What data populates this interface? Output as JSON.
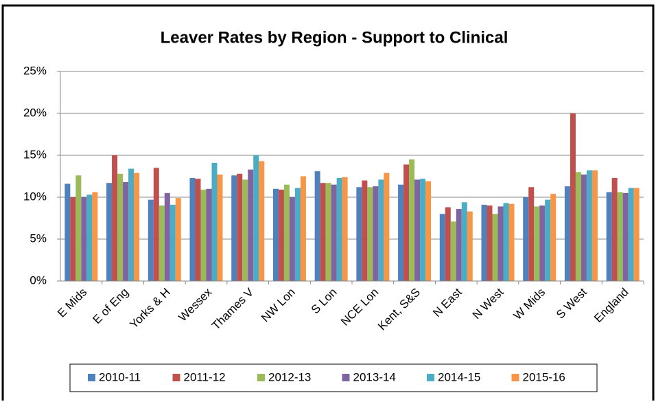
{
  "chart_data": {
    "type": "bar",
    "title": "Leaver Rates by Region - Support to Clinical",
    "categories": [
      "E Mids",
      "E of Eng",
      "Yorks & H",
      "Wessex",
      "Thames V",
      "NW Lon",
      "S Lon",
      "NCE Lon",
      "Kent, S&S",
      "N East",
      "N West",
      "W Mids",
      "S West",
      "England"
    ],
    "series": [
      {
        "name": "2010-11",
        "color": "#4f81bd",
        "values": [
          11.6,
          11.7,
          9.7,
          12.3,
          12.6,
          11.0,
          13.1,
          11.2,
          11.5,
          8.0,
          9.1,
          10.0,
          11.3,
          10.6
        ]
      },
      {
        "name": "2011-12",
        "color": "#c0504d",
        "values": [
          10.0,
          15.0,
          13.5,
          12.2,
          12.8,
          10.9,
          11.7,
          12.0,
          13.9,
          8.8,
          9.0,
          11.2,
          20.0,
          12.3
        ]
      },
      {
        "name": "2012-13",
        "color": "#9bbb59",
        "values": [
          12.6,
          12.8,
          9.0,
          10.9,
          12.1,
          11.5,
          11.7,
          11.2,
          14.5,
          7.1,
          8.0,
          8.9,
          13.0,
          10.6
        ]
      },
      {
        "name": "2013-14",
        "color": "#8064a2",
        "values": [
          10.0,
          11.8,
          10.5,
          11.0,
          13.3,
          10.0,
          11.5,
          11.3,
          12.1,
          8.6,
          8.9,
          9.0,
          12.7,
          10.5
        ]
      },
      {
        "name": "2014-15",
        "color": "#4bacc6",
        "values": [
          10.3,
          13.4,
          9.1,
          14.1,
          15.0,
          11.1,
          12.3,
          12.1,
          12.2,
          9.4,
          9.3,
          9.7,
          13.2,
          11.1
        ]
      },
      {
        "name": "2015-16",
        "color": "#f79646",
        "values": [
          10.6,
          12.9,
          9.9,
          12.7,
          14.3,
          12.5,
          12.4,
          12.9,
          11.9,
          8.3,
          9.2,
          10.4,
          13.2,
          11.1
        ]
      }
    ],
    "ylim": [
      0,
      25
    ],
    "yticks": [
      {
        "value": 0,
        "label": "0%"
      },
      {
        "value": 5,
        "label": "5%"
      },
      {
        "value": 10,
        "label": "10%"
      },
      {
        "value": 15,
        "label": "15%"
      },
      {
        "value": 20,
        "label": "20%"
      },
      {
        "value": 25,
        "label": "25%"
      }
    ],
    "grid": true,
    "legend": "bottom"
  }
}
